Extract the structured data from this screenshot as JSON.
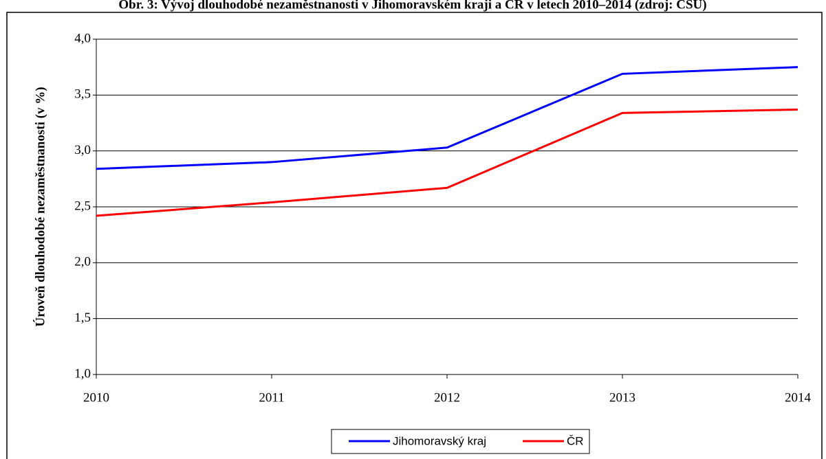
{
  "chart_data": {
    "type": "line",
    "title": "Obr. 3: Vývoj dlouhodobé nezaměstnanosti v Jihomoravském kraji a ČR v letech 2010–2014 (zdroj: ČSÚ)",
    "ylabel": "Úroveň dlouhodobé nezaměstnanosti (v %)",
    "categories": [
      "2010",
      "2011",
      "2012",
      "2013",
      "2014"
    ],
    "series": [
      {
        "name": "Jihomoravský kraj",
        "color": "#0000ff",
        "values": [
          2.84,
          2.9,
          3.03,
          3.69,
          3.75
        ]
      },
      {
        "name": "ČR",
        "color": "#ff0000",
        "values": [
          2.42,
          2.54,
          2.67,
          3.34,
          3.37
        ]
      }
    ],
    "ylim": [
      1,
      4
    ],
    "yticks": [
      {
        "value": 1,
        "label": "1,0"
      },
      {
        "value": 1.5,
        "label": "1,5"
      },
      {
        "value": 2,
        "label": "2,0"
      },
      {
        "value": 2.5,
        "label": "2,5"
      },
      {
        "value": 3,
        "label": "3,0"
      },
      {
        "value": 3.5,
        "label": "3,5"
      },
      {
        "value": 4,
        "label": "4,0"
      }
    ],
    "grid": true,
    "legend": "bottom"
  }
}
